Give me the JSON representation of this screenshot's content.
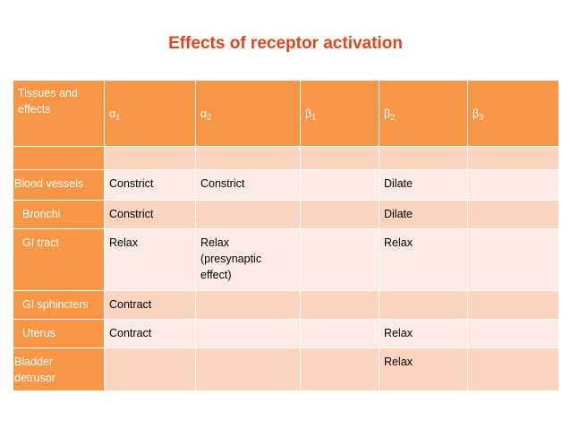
{
  "title": "Effects of receptor activation",
  "table": {
    "header_first": [
      "Tissues and",
      "effects"
    ],
    "columns": [
      {
        "base": "α",
        "sub": "1"
      },
      {
        "base": "α",
        "sub": "2"
      },
      {
        "base": "β",
        "sub": "1"
      },
      {
        "base": "β",
        "sub": "2"
      },
      {
        "base": "β",
        "sub": "3"
      }
    ],
    "rows": [
      {
        "tissue": "",
        "cells": [
          "",
          "",
          "",
          "",
          ""
        ]
      },
      {
        "tissue": "Blood vessels",
        "cells": [
          "Constrict",
          "Constrict",
          "",
          "Dilate",
          ""
        ]
      },
      {
        "tissue": "Bronchi",
        "cells": [
          "Constrict",
          "",
          "",
          "Dilate",
          ""
        ]
      },
      {
        "tissue": "GI tract",
        "cells": [
          "Relax",
          "Relax\n(presynaptic\neffect)",
          "",
          "Relax",
          ""
        ]
      },
      {
        "tissue": "GI sphincters",
        "cells": [
          "Contract",
          "",
          "",
          "",
          ""
        ]
      },
      {
        "tissue": "Uterus",
        "cells": [
          "Contract",
          "",
          "",
          "Relax",
          ""
        ]
      },
      {
        "tissue": "Bladder\ndetrusor",
        "cells": [
          "",
          "",
          "",
          "Relax",
          ""
        ]
      }
    ]
  }
}
